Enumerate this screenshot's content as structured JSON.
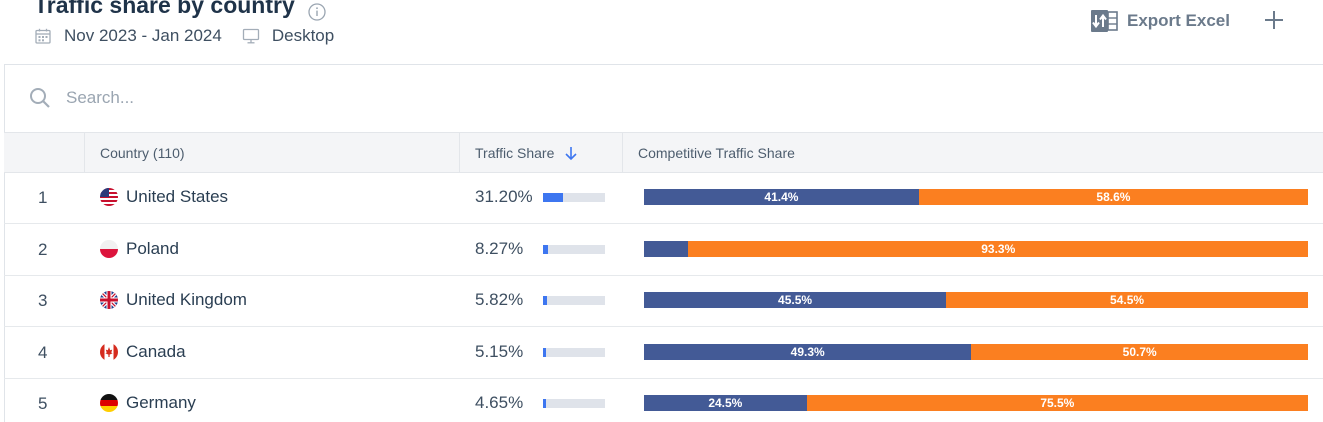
{
  "header": {
    "title": "Traffic share by country",
    "date_range": "Nov 2023 - Jan 2024",
    "device": "Desktop",
    "export_label": "Export Excel"
  },
  "search": {
    "placeholder": "Search..."
  },
  "table": {
    "columns": {
      "country": "Country (110)",
      "traffic_share": "Traffic Share",
      "competitive": "Competitive Traffic Share"
    },
    "rows": [
      {
        "rank": "1",
        "country": "United States",
        "flag": "us-flag-icon",
        "share": "31.20%",
        "share_value": 31.2,
        "comp_a": 41.4,
        "comp_a_label": "41.4%",
        "comp_b": 58.6,
        "comp_b_label": "58.6%"
      },
      {
        "rank": "2",
        "country": "Poland",
        "flag": "pl-flag-icon",
        "share": "8.27%",
        "share_value": 8.27,
        "comp_a": 6.7,
        "comp_a_label": "",
        "comp_b": 93.3,
        "comp_b_label": "93.3%"
      },
      {
        "rank": "3",
        "country": "United Kingdom",
        "flag": "gb-flag-icon",
        "share": "5.82%",
        "share_value": 5.82,
        "comp_a": 45.5,
        "comp_a_label": "45.5%",
        "comp_b": 54.5,
        "comp_b_label": "54.5%"
      },
      {
        "rank": "4",
        "country": "Canada",
        "flag": "ca-flag-icon",
        "share": "5.15%",
        "share_value": 5.15,
        "comp_a": 49.3,
        "comp_a_label": "49.3%",
        "comp_b": 50.7,
        "comp_b_label": "50.7%"
      },
      {
        "rank": "5",
        "country": "Germany",
        "flag": "de-flag-icon",
        "share": "4.65%",
        "share_value": 4.65,
        "comp_a": 24.5,
        "comp_a_label": "24.5%",
        "comp_b": 75.5,
        "comp_b_label": "75.5%"
      }
    ]
  },
  "colors": {
    "mini_bar": "#3d76f0",
    "mini_track": "#dfe3ea",
    "comp_primary": "#435a96",
    "comp_secondary": "#fb7f20"
  }
}
